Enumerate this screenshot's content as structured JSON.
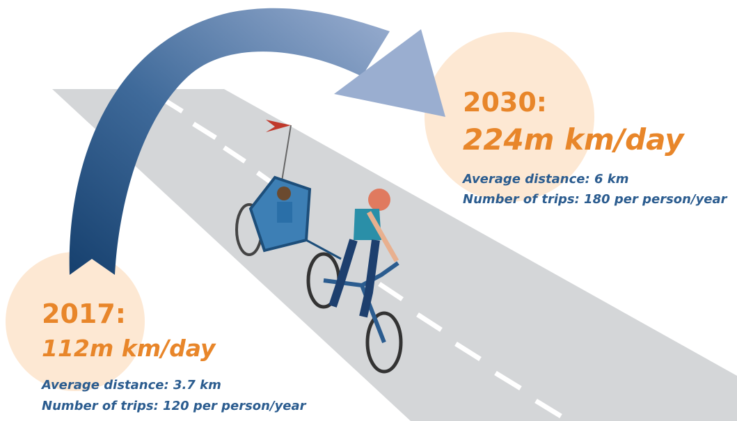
{
  "past": {
    "year": "2017:",
    "value": "112m km/day",
    "distance": "Average distance: 3.7 km",
    "trips": "Number of trips: 120 per person/year"
  },
  "future": {
    "year": "2030:",
    "value": "224m km/day",
    "distance": "Average distance: 6 km",
    "trips": "Number of trips: 180 per person/year"
  }
}
